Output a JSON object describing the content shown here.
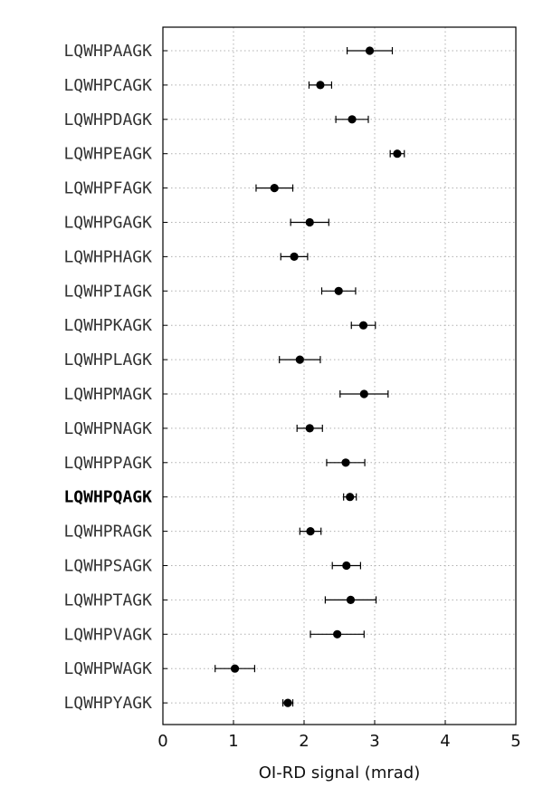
{
  "chart_data": {
    "type": "scatter",
    "orientation": "horizontal",
    "xlabel": "OI-RD signal (mrad)",
    "xlim": [
      0,
      5
    ],
    "xticks": [
      0,
      1,
      2,
      3,
      4,
      5
    ],
    "grid": true,
    "highlight_category": "LQWHPQAGK",
    "marker_color": "#000000",
    "categories": [
      "LQWHPAAGK",
      "LQWHPCAGK",
      "LQWHPDAGK",
      "LQWHPEAGK",
      "LQWHPFAGK",
      "LQWHPGAGK",
      "LQWHPHAGK",
      "LQWHPIAGK",
      "LQWHPKAGK",
      "LQWHPLAGK",
      "LQWHPMAGK",
      "LQWHPNAGK",
      "LQWHPPAGK",
      "LQWHPQAGK",
      "LQWHPRAGK",
      "LQWHPSAGK",
      "LQWHPTAGK",
      "LQWHPVAGK",
      "LQWHPWAGK",
      "LQWHPYAGK"
    ],
    "values": [
      2.93,
      2.23,
      2.68,
      3.32,
      1.58,
      2.08,
      1.86,
      2.49,
      2.84,
      1.94,
      2.85,
      2.08,
      2.59,
      2.65,
      2.09,
      2.6,
      2.66,
      2.47,
      1.02,
      1.77
    ],
    "errors": [
      0.32,
      0.16,
      0.23,
      0.1,
      0.26,
      0.27,
      0.19,
      0.24,
      0.17,
      0.29,
      0.34,
      0.18,
      0.27,
      0.09,
      0.15,
      0.2,
      0.36,
      0.38,
      0.28,
      0.07
    ]
  }
}
